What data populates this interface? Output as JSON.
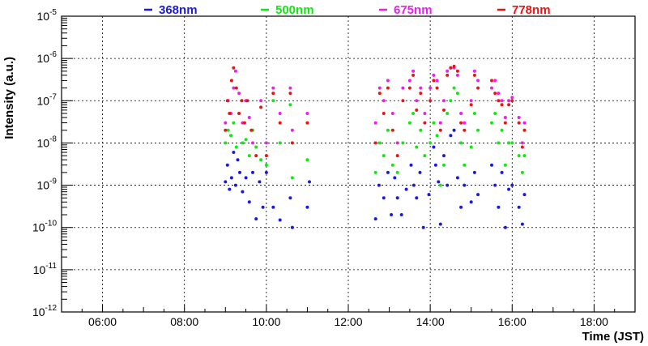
{
  "chart_data": {
    "type": "scatter",
    "title": "",
    "xlabel": "Time (JST)",
    "ylabel": "Intensity (a.u.)",
    "x_scale": "time",
    "xlim": [
      "05:00",
      "19:00"
    ],
    "x_ticks": [
      "06:00",
      "08:00",
      "10:00",
      "12:00",
      "14:00",
      "16:00",
      "18:00"
    ],
    "y_scale": "log",
    "ylim": [
      1e-12,
      1e-05
    ],
    "y_ticks": [
      {
        "value": 1e-12,
        "base": "10",
        "exp": "-12"
      },
      {
        "value": 1e-11,
        "base": "10",
        "exp": "-11"
      },
      {
        "value": 1e-10,
        "base": "10",
        "exp": "-10"
      },
      {
        "value": 1e-09,
        "base": "10",
        "exp": "-9"
      },
      {
        "value": 1e-08,
        "base": "10",
        "exp": "-8"
      },
      {
        "value": 1e-07,
        "base": "10",
        "exp": "-7"
      },
      {
        "value": 1e-06,
        "base": "10",
        "exp": "-6"
      },
      {
        "value": 1e-05,
        "base": "10",
        "exp": "-5"
      }
    ],
    "grid": true,
    "legend_position": "top",
    "series": [
      {
        "name": "368nm",
        "color": "#1a1adf",
        "points": [
          [
            "09:00",
            1.2e-09
          ],
          [
            "09:03",
            3e-09
          ],
          [
            "09:06",
            8e-10
          ],
          [
            "09:09",
            1.5e-09
          ],
          [
            "09:12",
            6e-09
          ],
          [
            "09:15",
            1e-09
          ],
          [
            "09:18",
            4e-09
          ],
          [
            "09:21",
            2e-09
          ],
          [
            "09:25",
            7e-10
          ],
          [
            "09:30",
            1.5e-09
          ],
          [
            "09:35",
            4e-10
          ],
          [
            "09:40",
            2e-09
          ],
          [
            "09:45",
            1.6e-10
          ],
          [
            "09:50",
            1.2e-09
          ],
          [
            "09:55",
            3e-10
          ],
          [
            "10:00",
            2e-09
          ],
          [
            "10:10",
            3e-10
          ],
          [
            "10:20",
            1.5e-10
          ],
          [
            "10:35",
            5e-10
          ],
          [
            "10:38",
            1e-10
          ],
          [
            "11:00",
            3e-10
          ],
          [
            "11:03",
            1.2e-09
          ],
          [
            "12:40",
            1.6e-10
          ],
          [
            "12:45",
            1e-09
          ],
          [
            "12:52",
            5e-10
          ],
          [
            "12:58",
            2e-09
          ],
          [
            "13:03",
            2e-10
          ],
          [
            "13:08",
            1.5e-09
          ],
          [
            "13:12",
            5e-10
          ],
          [
            "13:18",
            2e-10
          ],
          [
            "13:25",
            8e-10
          ],
          [
            "13:32",
            3e-09
          ],
          [
            "13:36",
            1e-09
          ],
          [
            "13:40",
            5e-10
          ],
          [
            "13:45",
            2e-09
          ],
          [
            "13:50",
            1e-10
          ],
          [
            "13:58",
            6e-10
          ],
          [
            "14:05",
            8e-09
          ],
          [
            "14:08",
            3e-09
          ],
          [
            "14:12",
            1.2e-09
          ],
          [
            "14:15",
            1.2e-10
          ],
          [
            "14:20",
            5e-09
          ],
          [
            "14:25",
            1e-09
          ],
          [
            "14:30",
            1.5e-08
          ],
          [
            "14:35",
            2e-08
          ],
          [
            "14:40",
            1.5e-09
          ],
          [
            "14:45",
            3e-10
          ],
          [
            "14:50",
            1e-09
          ],
          [
            "15:00",
            4e-10
          ],
          [
            "15:05",
            2e-09
          ],
          [
            "15:10",
            6e-10
          ],
          [
            "15:30",
            3e-09
          ],
          [
            "15:35",
            1e-09
          ],
          [
            "15:40",
            3e-10
          ],
          [
            "15:45",
            2e-09
          ],
          [
            "15:50",
            1e-10
          ],
          [
            "15:55",
            8e-10
          ],
          [
            "16:00",
            1e-09
          ],
          [
            "16:10",
            3e-10
          ],
          [
            "16:15",
            1.2e-10
          ],
          [
            "16:18",
            6e-10
          ]
        ]
      },
      {
        "name": "500nm",
        "color": "#12e812",
        "points": [
          [
            "09:00",
            1e-08
          ],
          [
            "09:04",
            2e-08
          ],
          [
            "09:08",
            1.5e-08
          ],
          [
            "09:12",
            3e-08
          ],
          [
            "09:16",
            8e-09
          ],
          [
            "09:20",
            5e-08
          ],
          [
            "09:25",
            1e-08
          ],
          [
            "09:30",
            1.2e-08
          ],
          [
            "09:35",
            5e-09
          ],
          [
            "09:40",
            2e-08
          ],
          [
            "09:45",
            8e-09
          ],
          [
            "09:52",
            4e-09
          ],
          [
            "10:00",
            3e-09
          ],
          [
            "10:10",
            1e-07
          ],
          [
            "10:20",
            1e-08
          ],
          [
            "10:35",
            8e-08
          ],
          [
            "10:38",
            1.5e-09
          ],
          [
            "11:00",
            4e-09
          ],
          [
            "12:40",
            2e-09
          ],
          [
            "12:46",
            1e-08
          ],
          [
            "12:52",
            5e-09
          ],
          [
            "12:58",
            2e-08
          ],
          [
            "13:05",
            3e-09
          ],
          [
            "13:12",
            2e-09
          ],
          [
            "13:20",
            1e-08
          ],
          [
            "13:30",
            3e-08
          ],
          [
            "13:35",
            5e-08
          ],
          [
            "13:40",
            8e-09
          ],
          [
            "13:46",
            2e-08
          ],
          [
            "13:52",
            5e-09
          ],
          [
            "14:00",
            1e-08
          ],
          [
            "14:05",
            3e-08
          ],
          [
            "14:10",
            1.5e-08
          ],
          [
            "14:15",
            1e-09
          ],
          [
            "14:20",
            3e-09
          ],
          [
            "14:25",
            5e-08
          ],
          [
            "14:30",
            1e-07
          ],
          [
            "14:35",
            2e-07
          ],
          [
            "14:40",
            1.5e-07
          ],
          [
            "14:45",
            1e-08
          ],
          [
            "14:50",
            3e-09
          ],
          [
            "15:00",
            8e-09
          ],
          [
            "15:05",
            5e-08
          ],
          [
            "15:10",
            2e-08
          ],
          [
            "15:30",
            3e-08
          ],
          [
            "15:35",
            5e-08
          ],
          [
            "15:40",
            1e-08
          ],
          [
            "15:45",
            2e-08
          ],
          [
            "15:50",
            3e-09
          ],
          [
            "15:55",
            1e-08
          ],
          [
            "16:00",
            1e-08
          ],
          [
            "16:10",
            5e-09
          ],
          [
            "16:15",
            2e-09
          ],
          [
            "16:18",
            5e-09
          ]
        ]
      },
      {
        "name": "675nm",
        "color": "#ec20ec",
        "points": [
          [
            "09:00",
            3e-08
          ],
          [
            "09:04",
            1e-07
          ],
          [
            "09:08",
            5e-08
          ],
          [
            "09:12",
            2e-07
          ],
          [
            "09:15",
            5e-07
          ],
          [
            "09:20",
            1.5e-07
          ],
          [
            "09:25",
            3e-08
          ],
          [
            "09:30",
            1e-07
          ],
          [
            "09:35",
            4e-08
          ],
          [
            "09:40",
            1e-08
          ],
          [
            "09:52",
            1e-07
          ],
          [
            "10:00",
            1e-08
          ],
          [
            "10:10",
            2e-07
          ],
          [
            "10:20",
            5e-08
          ],
          [
            "10:35",
            2e-07
          ],
          [
            "10:38",
            2e-08
          ],
          [
            "11:00",
            5e-08
          ],
          [
            "12:40",
            3e-08
          ],
          [
            "12:46",
            2e-07
          ],
          [
            "12:52",
            1e-07
          ],
          [
            "12:58",
            3e-07
          ],
          [
            "13:05",
            5e-08
          ],
          [
            "13:12",
            1e-08
          ],
          [
            "13:20",
            2e-07
          ],
          [
            "13:30",
            3e-07
          ],
          [
            "13:35",
            5e-07
          ],
          [
            "13:40",
            1e-07
          ],
          [
            "13:46",
            2e-07
          ],
          [
            "13:52",
            5e-08
          ],
          [
            "14:00",
            2e-07
          ],
          [
            "14:05",
            4e-07
          ],
          [
            "14:10",
            3e-07
          ],
          [
            "14:15",
            3e-08
          ],
          [
            "14:20",
            1e-07
          ],
          [
            "14:25",
            5e-07
          ],
          [
            "14:30",
            6e-07
          ],
          [
            "14:35",
            6e-07
          ],
          [
            "14:40",
            4e-07
          ],
          [
            "14:45",
            5e-08
          ],
          [
            "14:50",
            3e-08
          ],
          [
            "15:00",
            1e-07
          ],
          [
            "15:05",
            5e-07
          ],
          [
            "15:10",
            3e-07
          ],
          [
            "15:30",
            2e-07
          ],
          [
            "15:35",
            3e-07
          ],
          [
            "15:40",
            1.5e-07
          ],
          [
            "15:45",
            1e-07
          ],
          [
            "15:50",
            4e-08
          ],
          [
            "15:55",
            1e-07
          ],
          [
            "16:00",
            1.2e-07
          ],
          [
            "16:10",
            4e-08
          ],
          [
            "16:15",
            1e-08
          ],
          [
            "16:18",
            3e-08
          ]
        ]
      },
      {
        "name": "778nm",
        "color": "#ea1414",
        "points": [
          [
            "09:00",
            2e-08
          ],
          [
            "09:03",
            1e-07
          ],
          [
            "09:06",
            5e-08
          ],
          [
            "09:09",
            3e-07
          ],
          [
            "09:12",
            6e-07
          ],
          [
            "09:16",
            2e-07
          ],
          [
            "09:20",
            5e-08
          ],
          [
            "09:24",
            1e-07
          ],
          [
            "09:28",
            3e-08
          ],
          [
            "09:32",
            1e-07
          ],
          [
            "09:38",
            2e-08
          ],
          [
            "09:45",
            5e-09
          ],
          [
            "09:52",
            7e-08
          ],
          [
            "10:00",
            5e-09
          ],
          [
            "10:10",
            1.5e-07
          ],
          [
            "10:20",
            3e-08
          ],
          [
            "10:35",
            1.5e-07
          ],
          [
            "10:38",
            1e-08
          ],
          [
            "11:00",
            3e-08
          ],
          [
            "12:40",
            1e-08
          ],
          [
            "12:46",
            1.5e-07
          ],
          [
            "12:52",
            5e-08
          ],
          [
            "12:58",
            2e-07
          ],
          [
            "13:05",
            2e-08
          ],
          [
            "13:12",
            5e-09
          ],
          [
            "13:20",
            1e-07
          ],
          [
            "13:30",
            2e-07
          ],
          [
            "13:35",
            4e-07
          ],
          [
            "13:40",
            6e-08
          ],
          [
            "13:46",
            1.5e-07
          ],
          [
            "13:52",
            3e-08
          ],
          [
            "14:00",
            1e-07
          ],
          [
            "14:05",
            3e-07
          ],
          [
            "14:10",
            2e-07
          ],
          [
            "14:15",
            2e-08
          ],
          [
            "14:20",
            6e-08
          ],
          [
            "14:25",
            4e-07
          ],
          [
            "14:30",
            6e-07
          ],
          [
            "14:35",
            6.5e-07
          ],
          [
            "14:40",
            5e-07
          ],
          [
            "14:45",
            3e-08
          ],
          [
            "14:50",
            2e-08
          ],
          [
            "15:00",
            8e-08
          ],
          [
            "15:05",
            4e-07
          ],
          [
            "15:10",
            2e-07
          ],
          [
            "15:30",
            3e-07
          ],
          [
            "15:35",
            1.5e-07
          ],
          [
            "15:40",
            1e-07
          ],
          [
            "15:45",
            8e-08
          ],
          [
            "15:50",
            3e-08
          ],
          [
            "15:55",
            8e-08
          ],
          [
            "16:00",
            1e-07
          ],
          [
            "16:10",
            3e-08
          ],
          [
            "16:15",
            8e-09
          ],
          [
            "16:18",
            2e-08
          ]
        ]
      }
    ]
  }
}
